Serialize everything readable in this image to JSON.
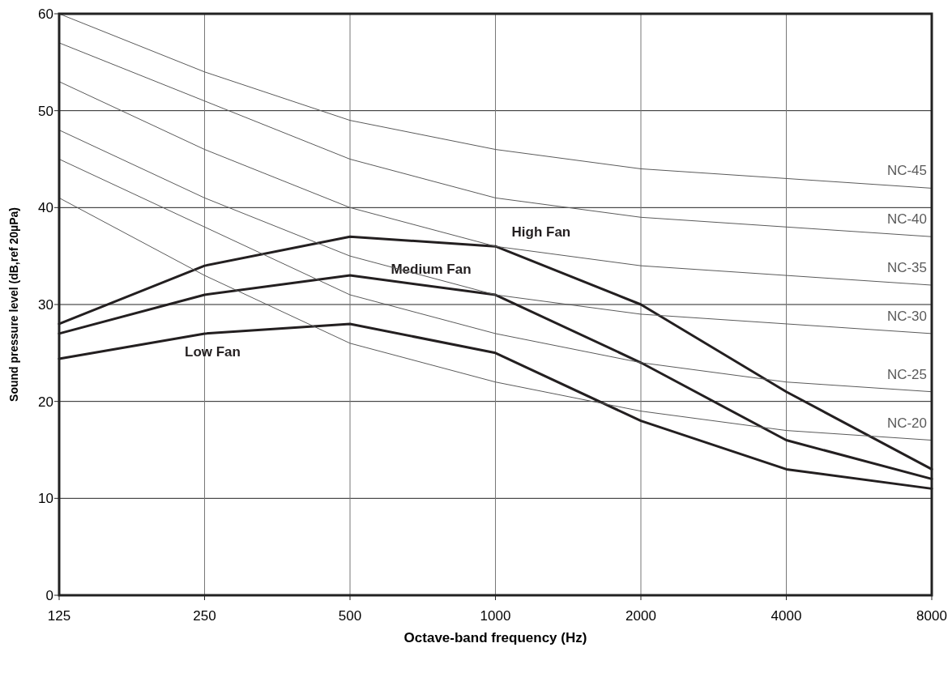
{
  "chart_data": {
    "type": "line",
    "xlabel": "Octave-band frequency (Hz)",
    "ylabel": "Sound pressure level (dB,ref 20µPa)",
    "categories": [
      "125",
      "250",
      "500",
      "1000",
      "2000",
      "4000",
      "8000"
    ],
    "ylim": [
      0,
      60
    ],
    "yticks": [
      0,
      10,
      20,
      30,
      40,
      50,
      60
    ],
    "grid": true,
    "legend": false,
    "marker": "none",
    "line_style": "solid",
    "series": [
      {
        "name": "High Fan",
        "color": "#231f20",
        "values": [
          28,
          34,
          37,
          36,
          30,
          21,
          13
        ]
      },
      {
        "name": "Medium Fan",
        "color": "#231f20",
        "values": [
          27,
          31,
          33,
          31,
          24,
          16,
          12
        ]
      },
      {
        "name": "Low Fan",
        "color": "#231f20",
        "values": [
          24.4,
          27,
          28,
          25,
          18,
          13,
          11
        ]
      },
      {
        "name": "NC-45",
        "color": "#5a5a5a",
        "values": [
          60,
          54,
          49,
          46,
          44,
          43,
          42
        ]
      },
      {
        "name": "NC-40",
        "color": "#5a5a5a",
        "values": [
          57,
          51,
          45,
          41,
          39,
          38,
          37
        ]
      },
      {
        "name": "NC-35",
        "color": "#5a5a5a",
        "values": [
          53,
          46,
          40,
          36,
          34,
          33,
          32
        ]
      },
      {
        "name": "NC-30",
        "color": "#5a5a5a",
        "values": [
          48,
          41,
          35,
          31,
          29,
          28,
          27
        ]
      },
      {
        "name": "NC-25",
        "color": "#5a5a5a",
        "values": [
          45,
          38,
          31,
          27,
          24,
          22,
          21
        ]
      },
      {
        "name": "NC-20",
        "color": "#5a5a5a",
        "values": [
          41,
          33,
          26,
          22,
          19,
          17,
          16
        ]
      }
    ]
  }
}
